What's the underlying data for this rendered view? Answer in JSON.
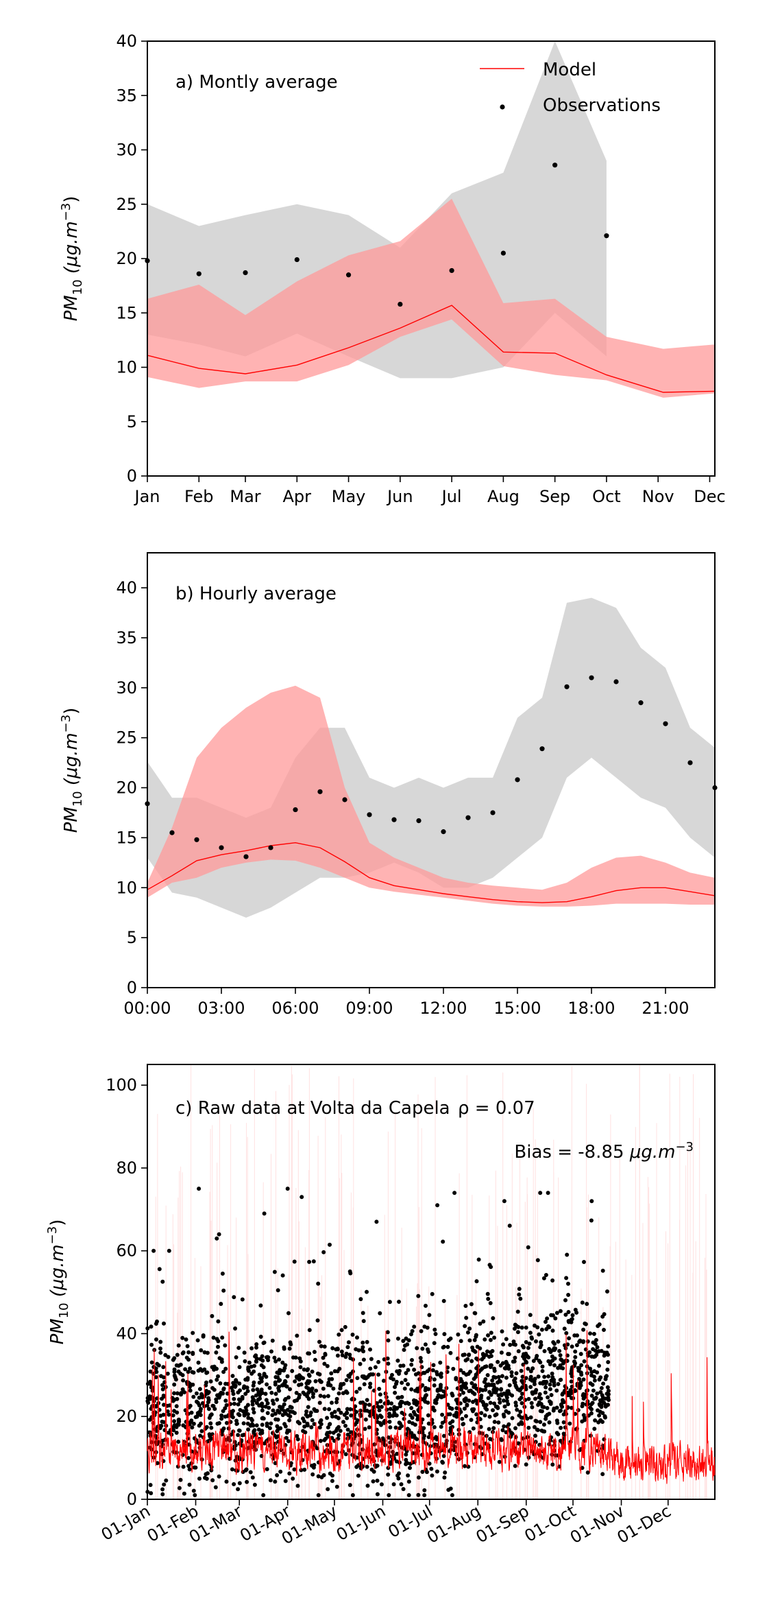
{
  "chart_data": [
    {
      "type": "line",
      "label": "a) Montly average",
      "ylabel": "PM10 (μg.m−3)",
      "ylabel_main": "PM",
      "ylabel_sub": "10",
      "ylabel_unit": "(μg.m",
      "ylabel_exp": "−3",
      "ylabel_close": ")",
      "ylim": [
        0,
        40
      ],
      "yticks": [
        0,
        5,
        10,
        15,
        20,
        25,
        30,
        35,
        40
      ],
      "xlim": [
        0,
        11
      ],
      "xticks": [
        "Jan",
        "Feb",
        "Mar",
        "Apr",
        "May",
        "Jun",
        "Jul",
        "Aug",
        "Sep",
        "Oct",
        "Nov",
        "Dec"
      ],
      "x": [
        0,
        1,
        1.9,
        2.9,
        3.9,
        4.9,
        5.9,
        6.9,
        7.9,
        8.9,
        9.9,
        10.9
      ],
      "legend": {
        "placement": "top-right",
        "model": "Model",
        "observations": "Observations"
      },
      "model": {
        "name": "Model",
        "x": [
          0,
          1,
          1.9,
          2.9,
          3.9,
          4.9,
          5.9,
          6.9,
          7.9,
          8.9,
          10,
          11
        ],
        "values": [
          11.1,
          9.9,
          9.4,
          10.2,
          11.8,
          13.6,
          15.7,
          11.4,
          11.3,
          9.3,
          7.7,
          7.8
        ],
        "upper": [
          16.3,
          17.6,
          14.8,
          17.9,
          20.3,
          21.6,
          25.5,
          15.9,
          16.3,
          12.8,
          11.7,
          12.1
        ],
        "lower": [
          9.1,
          8.1,
          8.7,
          8.7,
          10.2,
          12.8,
          14.4,
          10.1,
          9.3,
          8.8,
          7.2,
          7.6
        ]
      },
      "observations": {
        "name": "Observations",
        "x": [
          0,
          1,
          1.9,
          2.9,
          3.9,
          4.9,
          5.9,
          6.9,
          7.9,
          8.9
        ],
        "values": [
          19.8,
          18.6,
          18.7,
          19.9,
          18.5,
          15.8,
          18.9,
          20.5,
          28.6,
          22.1
        ],
        "upper": [
          25.0,
          23.0,
          24.0,
          25.0,
          24.0,
          21.0,
          26.0,
          27.9,
          40.0,
          29.0
        ],
        "lower": [
          13.0,
          12.1,
          11.0,
          13.1,
          11.0,
          9.0,
          9.0,
          10.0,
          15.0,
          11.0
        ]
      }
    },
    {
      "type": "line",
      "label": "b) Hourly average",
      "ylabel": "PM10 (μg.m−3)",
      "ylabel_main": "PM",
      "ylabel_sub": "10",
      "ylabel_unit": "(μg.m",
      "ylabel_exp": "−3",
      "ylabel_close": ")",
      "ylim": [
        0,
        43.5
      ],
      "yticks": [
        0,
        5,
        10,
        15,
        20,
        25,
        30,
        35,
        40
      ],
      "xlim": [
        0,
        23
      ],
      "xticks": [
        {
          "x": 0,
          "label": "00:00"
        },
        {
          "x": 3,
          "label": "03:00"
        },
        {
          "x": 6,
          "label": "06:00"
        },
        {
          "x": 9,
          "label": "09:00"
        },
        {
          "x": 12,
          "label": "12:00"
        },
        {
          "x": 15,
          "label": "15:00"
        },
        {
          "x": 18,
          "label": "18:00"
        },
        {
          "x": 21,
          "label": "21:00"
        }
      ],
      "model": {
        "name": "Model",
        "values": [
          9.8,
          11.2,
          12.7,
          13.3,
          13.7,
          14.2,
          14.5,
          14.0,
          12.6,
          11.0,
          10.2,
          9.8,
          9.4,
          9.1,
          8.8,
          8.6,
          8.5,
          8.6,
          9.1,
          9.7,
          10.0,
          10.0,
          9.6,
          9.2
        ],
        "upper": [
          10.5,
          16.0,
          23.0,
          26.0,
          28.0,
          29.5,
          30.2,
          29.0,
          20.0,
          14.5,
          13.0,
          12.0,
          11.0,
          10.5,
          10.2,
          10.0,
          9.8,
          10.5,
          12.0,
          13.0,
          13.2,
          12.5,
          11.5,
          11.0
        ],
        "lower": [
          9.0,
          10.5,
          11.0,
          12.0,
          12.5,
          12.8,
          12.7,
          12.0,
          11.0,
          10.0,
          9.6,
          9.3,
          9.0,
          8.7,
          8.4,
          8.2,
          8.1,
          8.1,
          8.2,
          8.4,
          8.4,
          8.4,
          8.3,
          8.3
        ]
      },
      "observations": {
        "name": "Observations",
        "values": [
          18.4,
          15.5,
          14.8,
          14.0,
          13.1,
          14.0,
          17.8,
          19.6,
          18.8,
          17.3,
          16.8,
          16.7,
          15.6,
          17.0,
          17.5,
          20.8,
          23.9,
          30.1,
          31.0,
          30.6,
          28.5,
          26.4,
          22.5,
          20.0
        ],
        "upper": [
          22.6,
          19.0,
          19.0,
          18.0,
          17.0,
          18.0,
          23.0,
          26.0,
          26.0,
          21.0,
          20.0,
          21.0,
          20.0,
          21.0,
          21.0,
          27.0,
          29.0,
          38.5,
          39.0,
          38.0,
          34.0,
          32.0,
          26.0,
          24.0
        ],
        "lower": [
          13.0,
          9.5,
          9.0,
          8.0,
          7.0,
          8.0,
          9.5,
          11.0,
          11.0,
          11.5,
          12.5,
          11.5,
          10.0,
          10.0,
          11.0,
          13.0,
          15.0,
          21.0,
          23.0,
          21.0,
          19.0,
          18.0,
          15.0,
          13.0
        ]
      }
    },
    {
      "type": "scatter",
      "label": "c) Raw data at Volta da Capela",
      "rho_text": "ρ = 0.07",
      "bias_text": "Bias = -8.85",
      "bias_unit": "μg.m",
      "bias_exp": "−3",
      "ylabel": "PM10 (μg.m−3)",
      "ylabel_main": "PM",
      "ylabel_sub": "10",
      "ylabel_unit": "(μg.m",
      "ylabel_exp": "−3",
      "ylabel_close": ")",
      "ylim": [
        0,
        105
      ],
      "yticks": [
        0,
        20,
        40,
        60,
        80,
        100
      ],
      "xlim": [
        0,
        364
      ],
      "xticks": [
        {
          "day": 0,
          "label": "01-Jan"
        },
        {
          "day": 31,
          "label": "01-Feb"
        },
        {
          "day": 59,
          "label": "01-Mar"
        },
        {
          "day": 90,
          "label": "01-Apr"
        },
        {
          "day": 120,
          "label": "01-May"
        },
        {
          "day": 151,
          "label": "01-Jun"
        },
        {
          "day": 181,
          "label": "01-Jul"
        },
        {
          "day": 212,
          "label": "01-Aug"
        },
        {
          "day": 243,
          "label": "01-Sep"
        },
        {
          "day": 273,
          "label": "01-Oct"
        },
        {
          "day": 304,
          "label": "01-Nov"
        },
        {
          "day": 334,
          "label": "01-Dec"
        }
      ],
      "observation_period": [
        "01-Jan",
        "late Oct"
      ],
      "model_period": [
        "01-Jan",
        "31-Dec"
      ],
      "typical_obs_range": [
        5,
        45
      ],
      "typical_model_range": [
        2,
        30
      ],
      "notable_obs_peaks": [
        {
          "day": 4,
          "value": 60
        },
        {
          "day": 14,
          "value": 60
        },
        {
          "day": 33,
          "value": 75
        },
        {
          "day": 46,
          "value": 64
        },
        {
          "day": 75,
          "value": 69
        },
        {
          "day": 90,
          "value": 75
        },
        {
          "day": 99,
          "value": 73
        },
        {
          "day": 130,
          "value": 55
        },
        {
          "day": 147,
          "value": 67
        },
        {
          "day": 186,
          "value": 71
        },
        {
          "day": 197,
          "value": 74
        },
        {
          "day": 229,
          "value": 72
        },
        {
          "day": 252,
          "value": 74
        },
        {
          "day": 257,
          "value": 74
        },
        {
          "day": 285,
          "value": 72
        }
      ],
      "colors": {
        "observations": "#000000",
        "model": "#ff0000"
      }
    }
  ],
  "colors": {
    "model_line": "#ff0000",
    "model_band": "#ff9999",
    "obs_band": "#bfbfbf",
    "obs_marker": "#000000"
  }
}
